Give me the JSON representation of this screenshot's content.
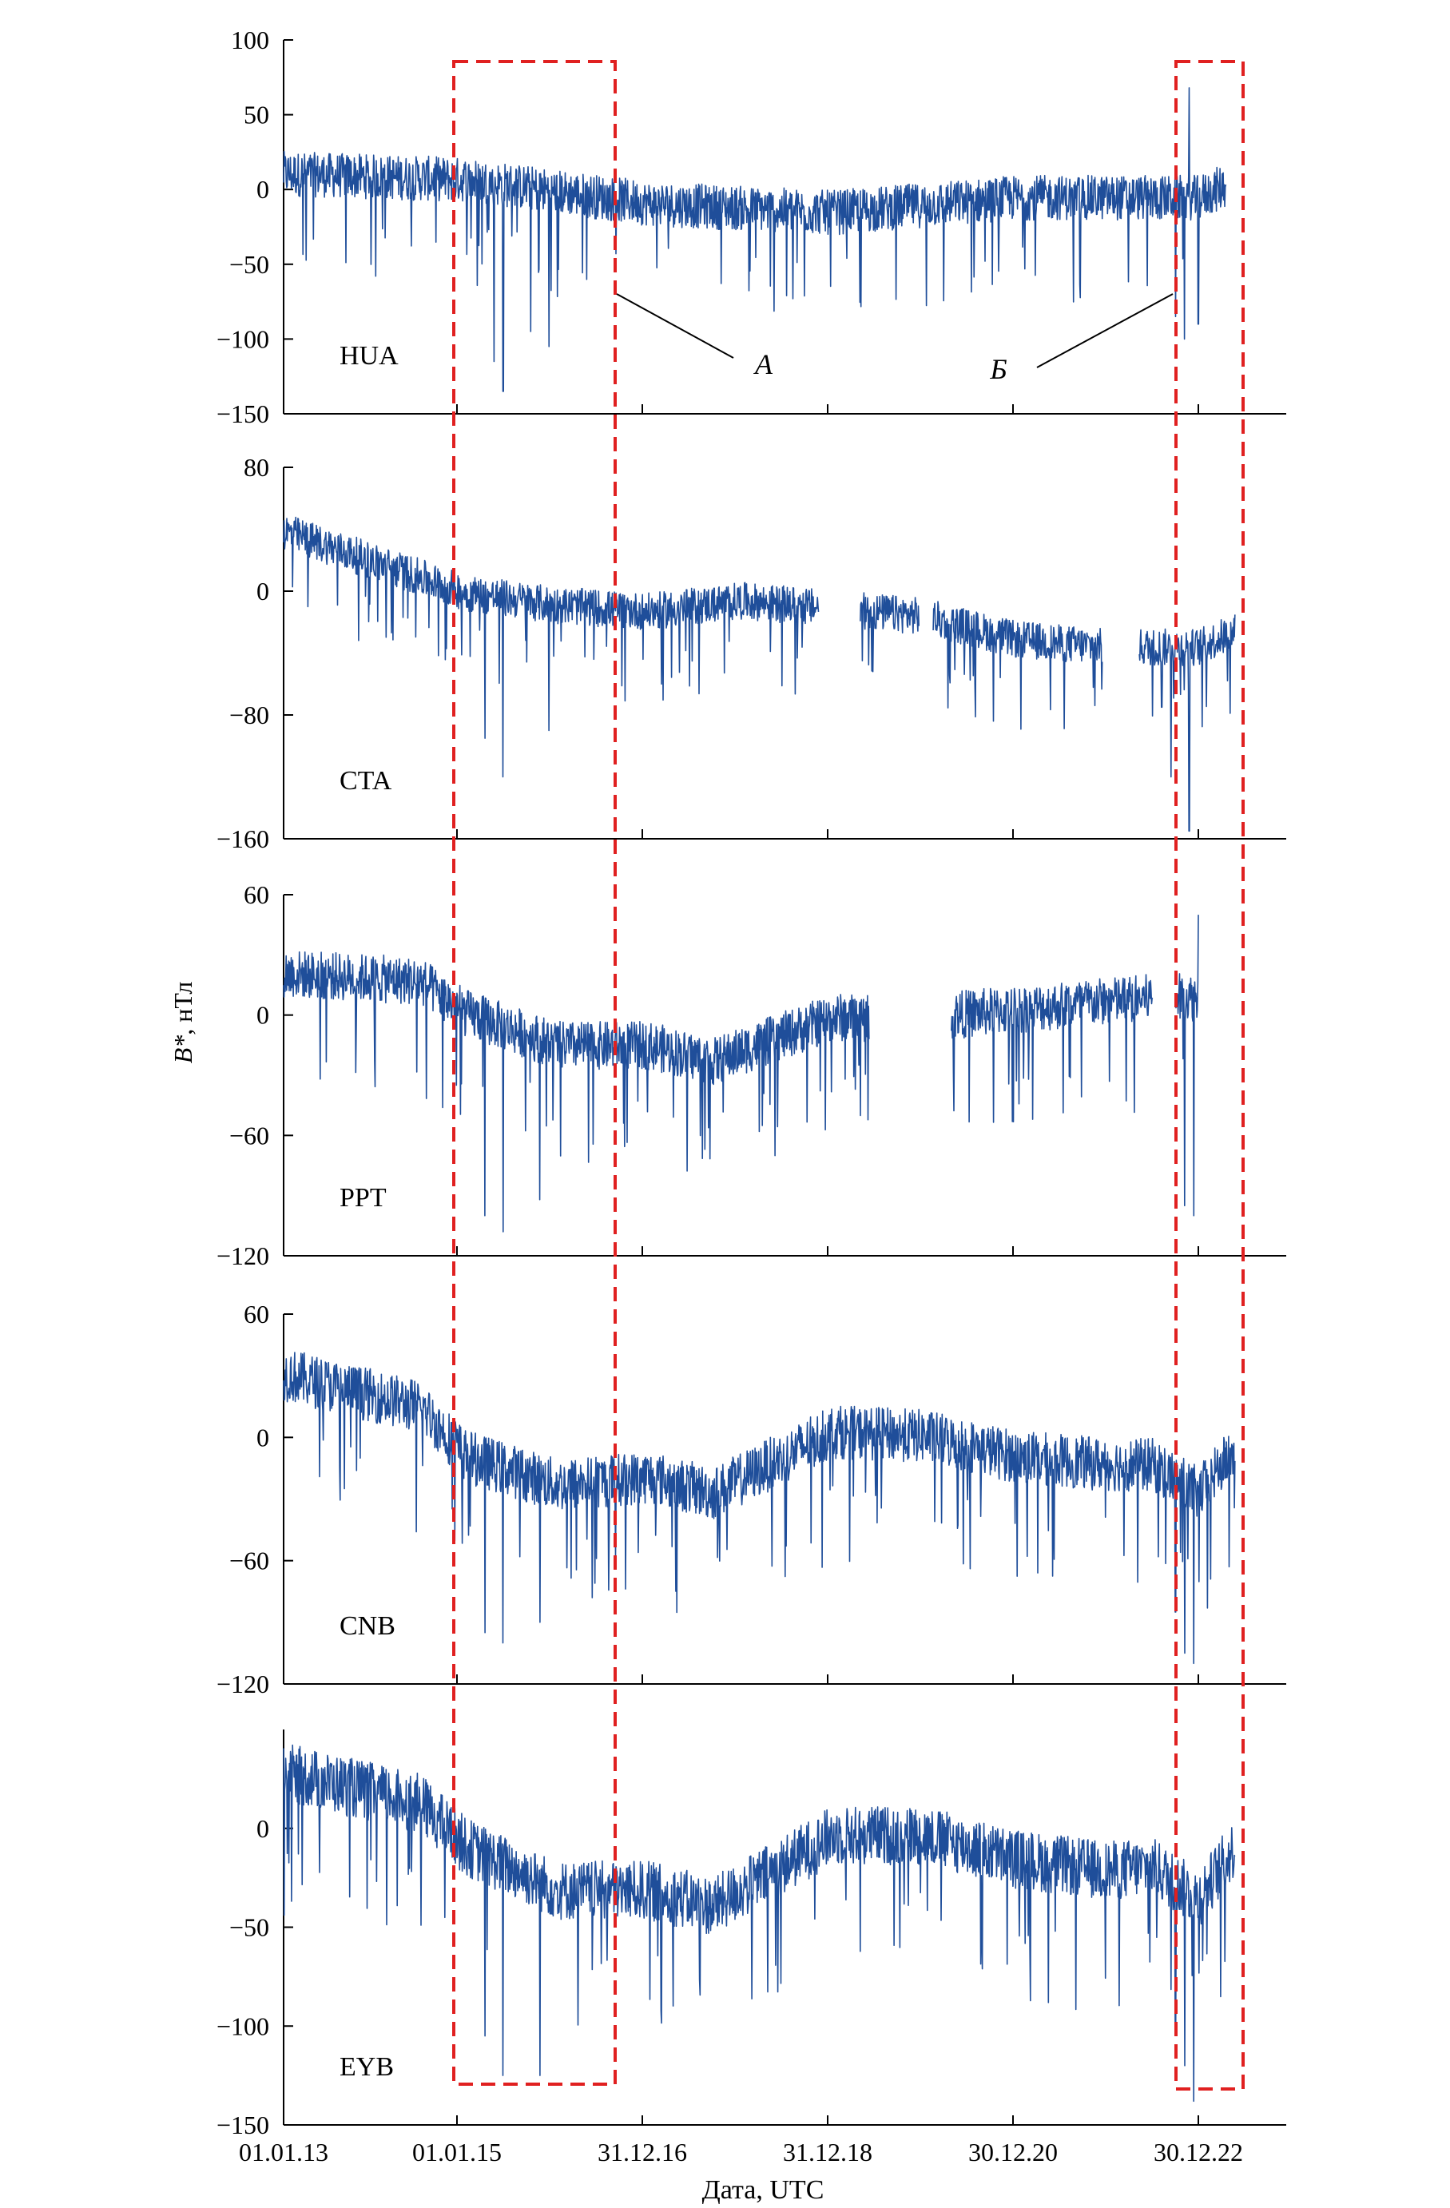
{
  "figure": {
    "y_axis_label_prefix": "B*",
    "y_axis_label_suffix": ", нТл",
    "x_axis_label": "Дата, UTC",
    "x_ticks": [
      "01.01.13",
      "01.01.15",
      "31.12.16",
      "31.12.18",
      "30.12.20",
      "30.12.22"
    ],
    "region_labels": [
      "А",
      "Б"
    ],
    "line_color": "#1f4e9a",
    "box_color": "#e02020"
  },
  "chart_data": [
    {
      "type": "line",
      "station": "HUA",
      "yticks": [
        100,
        50,
        0,
        -50,
        -100,
        -150
      ],
      "ylim": [
        -150,
        100
      ],
      "series": [
        {
          "x_range": [
            "01.01.13",
            "31.12.23"
          ],
          "baseline": [
            [
              0,
              12
            ],
            [
              2,
              8
            ],
            [
              4,
              -8
            ],
            [
              6,
              -14
            ],
            [
              8,
              -4
            ],
            [
              10,
              -4
            ],
            [
              10.3,
              4
            ]
          ],
          "noise": 15,
          "spikes": [
            [
              2.4,
              -135
            ],
            [
              2.3,
              -115
            ],
            [
              2.9,
              -105
            ],
            [
              2.7,
              -95
            ],
            [
              9.85,
              -100
            ],
            [
              9.75,
              -85
            ],
            [
              10.0,
              -90
            ],
            [
              9.9,
              68
            ]
          ],
          "gaps": []
        }
      ]
    },
    {
      "type": "line",
      "station": "CTA",
      "yticks": [
        80,
        0,
        -80,
        -160
      ],
      "ylim": [
        -160,
        80
      ],
      "series": [
        {
          "x_range": [
            "01.01.13",
            "31.12.23"
          ],
          "baseline": [
            [
              0,
              40
            ],
            [
              1,
              20
            ],
            [
              2,
              0
            ],
            [
              3,
              -8
            ],
            [
              4,
              -12
            ],
            [
              5,
              -5
            ],
            [
              6,
              -10
            ],
            [
              7,
              -15
            ],
            [
              8,
              -30
            ],
            [
              9,
              -35
            ],
            [
              10,
              -35
            ],
            [
              10.4,
              -25
            ]
          ],
          "noise": 12,
          "spikes": [
            [
              2.4,
              -120
            ],
            [
              2.2,
              -95
            ],
            [
              2.9,
              -90
            ],
            [
              9.9,
              -155
            ],
            [
              9.7,
              -120
            ],
            [
              9.6,
              -75
            ]
          ],
          "gaps": [
            [
              5.85,
              6.3
            ],
            [
              6.95,
              7.1
            ],
            [
              8.95,
              9.35
            ]
          ]
        }
      ]
    },
    {
      "type": "line",
      "station": "PPT",
      "yticks": [
        60,
        0,
        -60,
        -120
      ],
      "ylim": [
        -120,
        60
      ],
      "series": [
        {
          "x_range": [
            "01.01.13",
            "31.12.23"
          ],
          "baseline": [
            [
              0,
              22
            ],
            [
              1.5,
              18
            ],
            [
              2,
              2
            ],
            [
              3,
              -14
            ],
            [
              4,
              -14
            ],
            [
              4.7,
              -22
            ],
            [
              6,
              0
            ],
            [
              7,
              0
            ],
            [
              8,
              4
            ],
            [
              9.5,
              10
            ],
            [
              10,
              10
            ]
          ],
          "noise": 12,
          "spikes": [
            [
              2.4,
              -108
            ],
            [
              2.2,
              -100
            ],
            [
              2.8,
              -92
            ],
            [
              9.95,
              -100
            ],
            [
              9.85,
              -95
            ],
            [
              10.0,
              50
            ]
          ],
          "gaps": [
            [
              6.4,
              7.3
            ],
            [
              9.5,
              9.75
            ],
            [
              10.15,
              10.5
            ]
          ]
        }
      ]
    },
    {
      "type": "line",
      "station": "CNB",
      "yticks": [
        60,
        0,
        -60,
        -120
      ],
      "ylim": [
        -120,
        60
      ],
      "series": [
        {
          "x_range": [
            "01.01.13",
            "31.12.23"
          ],
          "baseline": [
            [
              0,
              32
            ],
            [
              1.5,
              16
            ],
            [
              2,
              -8
            ],
            [
              3,
              -22
            ],
            [
              4,
              -18
            ],
            [
              4.7,
              -26
            ],
            [
              6,
              4
            ],
            [
              7,
              2
            ],
            [
              8,
              -8
            ],
            [
              9,
              -12
            ],
            [
              9.5,
              -12
            ],
            [
              10,
              -26
            ],
            [
              10.4,
              -5
            ]
          ],
          "noise": 13,
          "spikes": [
            [
              2.4,
              -100
            ],
            [
              2.2,
              -95
            ],
            [
              2.8,
              -90
            ],
            [
              9.95,
              -110
            ],
            [
              9.85,
              -105
            ],
            [
              9.75,
              -85
            ]
          ],
          "gaps": []
        }
      ]
    },
    {
      "type": "line",
      "station": "EYB",
      "yticks": [
        0,
        -50,
        -100,
        -150
      ],
      "ylim": [
        -150,
        50
      ],
      "series": [
        {
          "x_range": [
            "01.01.13",
            "31.12.23"
          ],
          "baseline": [
            [
              0,
              30
            ],
            [
              1.5,
              14
            ],
            [
              2,
              -8
            ],
            [
              3,
              -30
            ],
            [
              4,
              -30
            ],
            [
              4.7,
              -38
            ],
            [
              6,
              -2
            ],
            [
              7,
              -2
            ],
            [
              8,
              -14
            ],
            [
              9,
              -20
            ],
            [
              9.5,
              -18
            ],
            [
              10,
              -34
            ],
            [
              10.4,
              -8
            ]
          ],
          "noise": 15,
          "spikes": [
            [
              2.8,
              -125
            ],
            [
              2.4,
              -125
            ],
            [
              2.2,
              -105
            ],
            [
              9.95,
              -138
            ],
            [
              9.85,
              -120
            ],
            [
              9.75,
              -100
            ]
          ],
          "gaps": []
        }
      ]
    }
  ]
}
